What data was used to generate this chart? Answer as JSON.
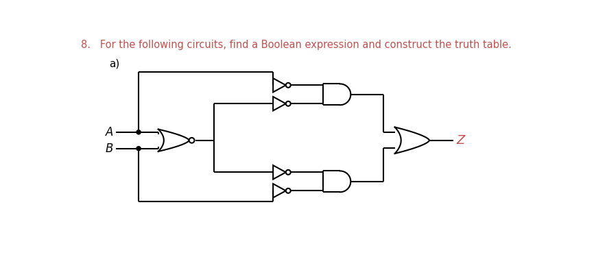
{
  "title_text": "8.   For the following circuits, find a Boolean expression and construct the truth table.",
  "title_color": "#c0504d",
  "title_fontsize": 10.5,
  "label_a": "A",
  "label_b": "B",
  "label_z": "Z",
  "label_ab_color": "#000000",
  "label_z_color": "#c0504d",
  "sublabel": "a)",
  "bg_color": "#ffffff",
  "line_color": "#000000",
  "line_width": 1.5
}
